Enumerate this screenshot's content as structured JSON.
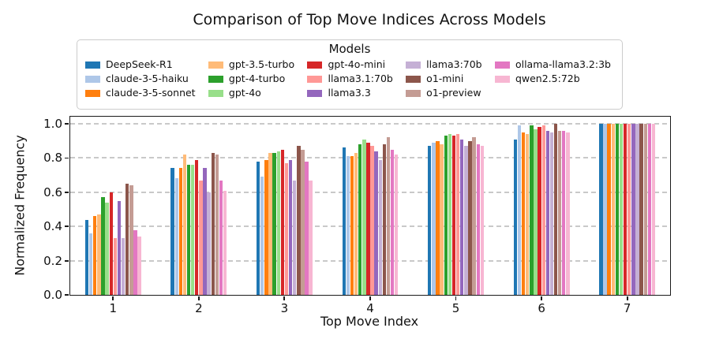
{
  "title": "Comparison of Top Move Indices Across Models",
  "legend": {
    "title": "Models"
  },
  "chart_data": {
    "type": "bar",
    "title": "Comparison of Top Move Indices Across Models",
    "xlabel": "Top Move Index",
    "ylabel": "Normalized Frequency",
    "categories": [
      "1",
      "2",
      "3",
      "4",
      "5",
      "6",
      "7"
    ],
    "y_ticks": [
      "0.0",
      "0.2",
      "0.4",
      "0.6",
      "0.8",
      "1.0"
    ],
    "ylim": [
      0.0,
      1.0
    ],
    "grid": "horizontal dashed",
    "legend_title": "Models",
    "legend_position": "top",
    "series": [
      {
        "name": "DeepSeek-R1",
        "color": "#1f77b4",
        "values": [
          0.44,
          0.74,
          0.78,
          0.86,
          0.87,
          0.91,
          1.0
        ]
      },
      {
        "name": "claude-3-5-haiku",
        "color": "#aec7e8",
        "values": [
          0.36,
          0.68,
          0.69,
          0.81,
          0.89,
          0.99,
          1.0
        ]
      },
      {
        "name": "claude-3-5-sonnet",
        "color": "#ff7f0e",
        "values": [
          0.46,
          0.74,
          0.79,
          0.81,
          0.9,
          0.95,
          1.0
        ]
      },
      {
        "name": "gpt-3.5-turbo",
        "color": "#ffbb78",
        "values": [
          0.47,
          0.82,
          0.83,
          0.83,
          0.88,
          0.94,
          1.0
        ]
      },
      {
        "name": "gpt-4-turbo",
        "color": "#2ca02c",
        "values": [
          0.57,
          0.76,
          0.83,
          0.88,
          0.93,
          0.99,
          1.0
        ]
      },
      {
        "name": "gpt-4o",
        "color": "#98df8a",
        "values": [
          0.54,
          0.76,
          0.84,
          0.91,
          0.94,
          0.97,
          1.0
        ]
      },
      {
        "name": "gpt-4o-mini",
        "color": "#d62728",
        "values": [
          0.6,
          0.79,
          0.85,
          0.89,
          0.93,
          0.98,
          1.0
        ]
      },
      {
        "name": "llama3.1:70b",
        "color": "#ff9896",
        "values": [
          0.33,
          0.67,
          0.77,
          0.87,
          0.94,
          0.99,
          1.0
        ]
      },
      {
        "name": "llama3.3",
        "color": "#9467bd",
        "values": [
          0.55,
          0.74,
          0.79,
          0.84,
          0.91,
          0.96,
          1.0
        ]
      },
      {
        "name": "llama3:70b",
        "color": "#c5b0d5",
        "values": [
          0.33,
          0.6,
          0.67,
          0.79,
          0.87,
          0.95,
          1.0
        ]
      },
      {
        "name": "o1-mini",
        "color": "#8c564b",
        "values": [
          0.65,
          0.83,
          0.87,
          0.88,
          0.9,
          1.0,
          1.0
        ]
      },
      {
        "name": "o1-preview",
        "color": "#c49c94",
        "values": [
          0.64,
          0.82,
          0.85,
          0.92,
          0.92,
          0.96,
          1.0
        ]
      },
      {
        "name": "ollama-llama3.2:3b",
        "color": "#e377c2",
        "values": [
          0.38,
          0.67,
          0.78,
          0.85,
          0.88,
          0.96,
          1.0
        ]
      },
      {
        "name": "qwen2.5:72b",
        "color": "#f7b6d2",
        "values": [
          0.34,
          0.61,
          0.67,
          0.82,
          0.87,
          0.95,
          1.0
        ]
      }
    ]
  }
}
